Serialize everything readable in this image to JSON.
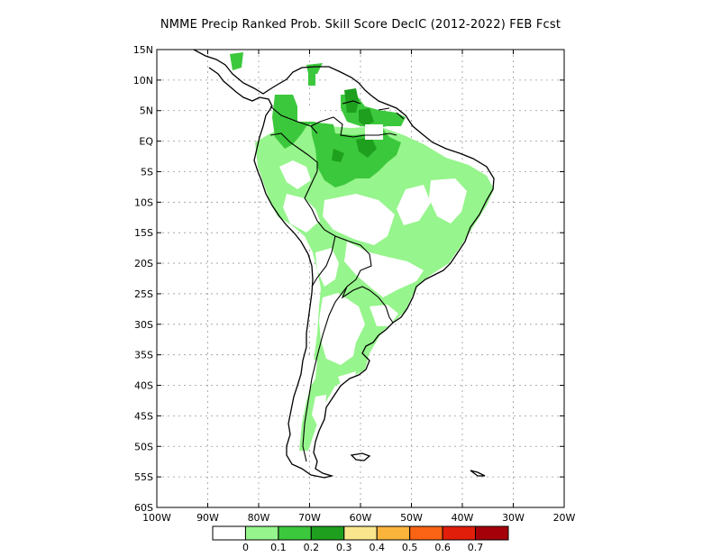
{
  "title": "NMME Precip Ranked Prob. Skill Score DecIC (2012-2022) FEB Fcst",
  "map": {
    "lon_range": [
      -100,
      -20
    ],
    "lat_range": [
      -60,
      15
    ],
    "lat_labels": [
      "15N",
      "10N",
      "5N",
      "EQ",
      "5S",
      "10S",
      "15S",
      "20S",
      "25S",
      "30S",
      "35S",
      "40S",
      "45S",
      "50S",
      "55S",
      "60S"
    ],
    "lat_values": [
      15,
      10,
      5,
      0,
      -5,
      -10,
      -15,
      -20,
      -25,
      -30,
      -35,
      -40,
      -45,
      -50,
      -55,
      -60
    ],
    "lon_labels": [
      "100W",
      "90W",
      "80W",
      "70W",
      "60W",
      "50W",
      "40W",
      "30W",
      "20W"
    ],
    "lon_values": [
      -100,
      -90,
      -80,
      -70,
      -60,
      -50,
      -40,
      -30,
      -20
    ],
    "grid": true
  },
  "legend": {
    "colors": [
      "#ffffff",
      "#96f58c",
      "#3cc83c",
      "#1ea01e",
      "#fae68c",
      "#fab43c",
      "#fa6414",
      "#e11e0a",
      "#a5000a"
    ],
    "labels": [
      "0",
      "0.1",
      "0.2",
      "0.3",
      "0.4",
      "0.5",
      "0.6",
      "0.7"
    ]
  }
}
